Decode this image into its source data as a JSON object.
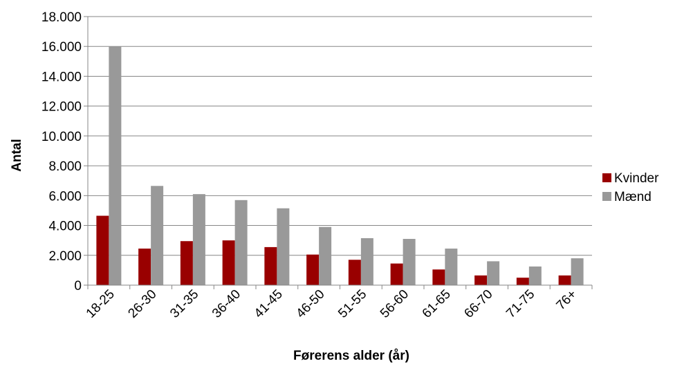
{
  "chart_data": {
    "type": "bar",
    "title": "",
    "xlabel": "Førerens alder (år)",
    "ylabel": "Antal",
    "categories": [
      "18-25",
      "26-30",
      "31-35",
      "36-40",
      "41-45",
      "46-50",
      "51-55",
      "56-60",
      "61-65",
      "66-70",
      "71-75",
      "76+"
    ],
    "series": [
      {
        "name": "Kvinder",
        "color": "#990000",
        "values": [
          4650,
          2450,
          2950,
          3000,
          2550,
          2050,
          1700,
          1450,
          1050,
          650,
          500,
          650
        ]
      },
      {
        "name": "Mænd",
        "color": "#999999",
        "values": [
          16000,
          6650,
          6100,
          5700,
          5150,
          3900,
          3150,
          3100,
          2450,
          1600,
          1250,
          1800
        ]
      }
    ],
    "ylim": [
      0,
      18000
    ],
    "yticks": [
      0,
      2000,
      4000,
      6000,
      8000,
      10000,
      12000,
      14000,
      16000,
      18000
    ],
    "ytick_labels": [
      "0",
      "2.000",
      "4.000",
      "6.000",
      "8.000",
      "10.000",
      "12.000",
      "14.000",
      "16.000",
      "18.000"
    ],
    "grid": "horizontal",
    "legend_position": "right"
  }
}
